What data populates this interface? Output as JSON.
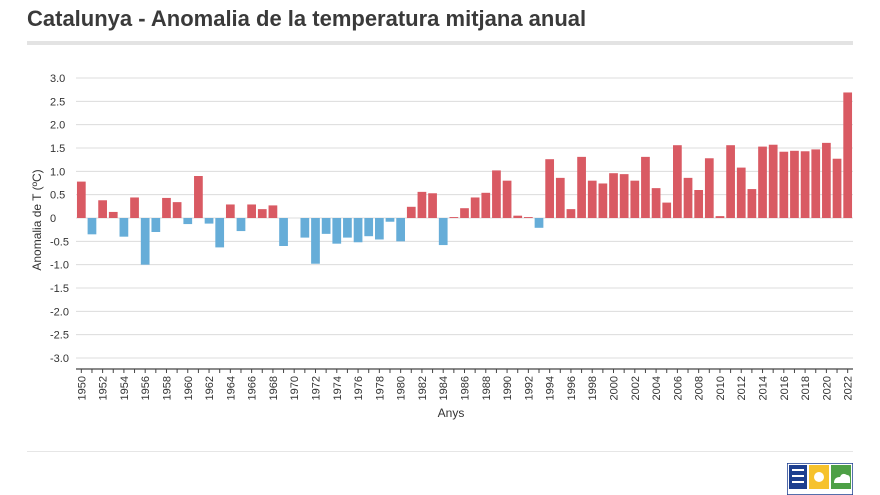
{
  "title": "Catalunya - Anomalia de la temperatura mitjana anual",
  "chart_data": {
    "type": "bar",
    "title": "Catalunya - Anomalia de la temperatura mitjana anual",
    "xlabel": "Anys",
    "ylabel": "Anomalia de T (ºC)",
    "ylim": [
      -3.0,
      3.0
    ],
    "yticks": [
      3.0,
      2.5,
      2.0,
      1.5,
      1.0,
      0.5,
      0,
      -0.5,
      -1.0,
      -1.5,
      -2.0,
      -2.5,
      -3.0
    ],
    "yticklabels": [
      "3.0",
      "2.5",
      "2.0",
      "1.5",
      "1.0",
      "0.5",
      "0",
      "-0.5",
      "-1.0",
      "-1.5",
      "-2.0",
      "-2.5",
      "-3.0"
    ],
    "grid": true,
    "categories": [
      "1950",
      "1951",
      "1952",
      "1953",
      "1954",
      "1955",
      "1956",
      "1957",
      "1958",
      "1959",
      "1960",
      "1961",
      "1962",
      "1963",
      "1964",
      "1965",
      "1966",
      "1967",
      "1968",
      "1969",
      "1970",
      "1971",
      "1972",
      "1973",
      "1974",
      "1975",
      "1976",
      "1977",
      "1978",
      "1979",
      "1980",
      "1981",
      "1982",
      "1983",
      "1984",
      "1985",
      "1986",
      "1987",
      "1988",
      "1989",
      "1990",
      "1991",
      "1992",
      "1993",
      "1994",
      "1995",
      "1996",
      "1997",
      "1998",
      "1999",
      "2000",
      "2001",
      "2002",
      "2003",
      "2004",
      "2005",
      "2006",
      "2007",
      "2008",
      "2009",
      "2010",
      "2011",
      "2012",
      "2013",
      "2014",
      "2015",
      "2016",
      "2017",
      "2018",
      "2019",
      "2020",
      "2021",
      "2022"
    ],
    "values": [
      0.78,
      -0.35,
      0.38,
      0.13,
      -0.4,
      0.44,
      -1.0,
      -0.3,
      0.43,
      0.34,
      -0.13,
      0.9,
      -0.12,
      -0.63,
      0.29,
      -0.28,
      0.29,
      0.19,
      0.27,
      -0.6,
      0,
      -0.42,
      -0.98,
      -0.34,
      -0.55,
      -0.42,
      -0.52,
      -0.39,
      -0.46,
      -0.08,
      -0.5,
      0.24,
      0.56,
      0.53,
      -0.58,
      0.02,
      0.21,
      0.44,
      0.54,
      1.02,
      0.8,
      0.05,
      0.02,
      -0.21,
      1.26,
      0.86,
      0.19,
      1.31,
      0.8,
      0.74,
      0.96,
      0.94,
      0.8,
      1.31,
      0.64,
      0.33,
      1.56,
      0.86,
      0.6,
      1.28,
      0.04,
      1.56,
      1.08,
      0.62,
      1.53,
      1.57,
      1.42,
      1.44,
      1.43,
      1.47,
      1.61,
      1.27,
      2.69
    ],
    "colors": {
      "positive": "#d95a63",
      "negative": "#66add8",
      "grid": "#dcdcdc",
      "axis": "#444444"
    }
  }
}
